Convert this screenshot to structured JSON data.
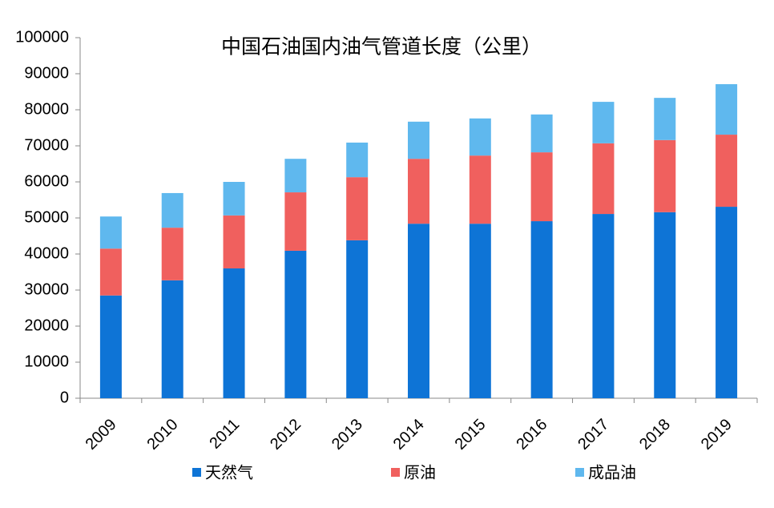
{
  "chart_data": {
    "type": "stacked_bar",
    "title": "中国石油国内油气管道长度（公里）",
    "categories": [
      "2009",
      "2010",
      "2011",
      "2012",
      "2013",
      "2014",
      "2015",
      "2016",
      "2017",
      "2018",
      "2019"
    ],
    "series": [
      {
        "name": "天然气",
        "color": "#0e74d6",
        "values": [
          28500,
          32700,
          36000,
          40900,
          43800,
          48400,
          48400,
          49100,
          51100,
          51600,
          53100
        ]
      },
      {
        "name": "原油",
        "color": "#f0605e",
        "values": [
          13000,
          14600,
          14700,
          16200,
          17500,
          18000,
          18900,
          19100,
          19600,
          20000,
          20000
        ]
      },
      {
        "name": "成品油",
        "color": "#5fb8ee",
        "values": [
          8900,
          9600,
          9300,
          9300,
          9600,
          10300,
          10300,
          10500,
          11500,
          11700,
          14000
        ]
      }
    ],
    "ylim": [
      0,
      100000
    ],
    "yticks": [
      0,
      10000,
      20000,
      30000,
      40000,
      50000,
      60000,
      70000,
      80000,
      90000,
      100000
    ]
  }
}
